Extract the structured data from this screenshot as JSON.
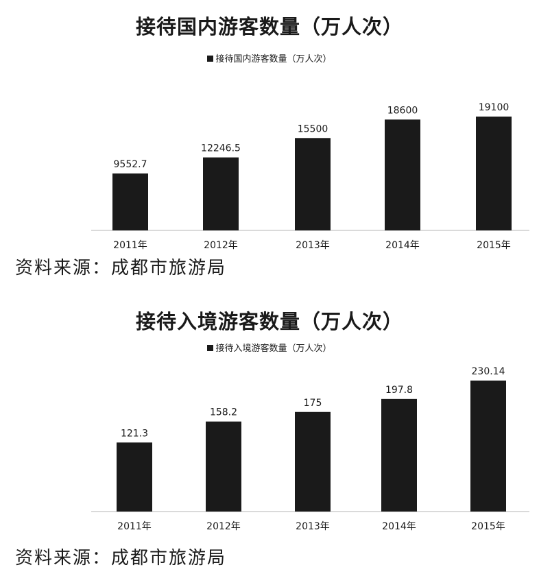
{
  "charts": [
    {
      "source_label": "资料来源：成都市旅游局"
    },
    {
      "source_label": "资料来源：成都市旅游局"
    }
  ],
  "chart_data": [
    {
      "type": "bar",
      "title": "接待国内游客数量（万人次）",
      "legend_position": "top-center",
      "grid": false,
      "categories": [
        "2011年",
        "2012年",
        "2013年",
        "2014年",
        "2015年"
      ],
      "series": [
        {
          "name": "接待国内游客数量（万人次）",
          "values": [
            9552.7,
            12246.5,
            15500,
            18600,
            19100
          ],
          "color": "#1a1a1a"
        }
      ],
      "value_labels": [
        "9552.7",
        "12246.5",
        "15500",
        "18600",
        "19100"
      ],
      "ylim": [
        0,
        19100
      ]
    },
    {
      "type": "bar",
      "title": "接待入境游客数量（万人次）",
      "legend_position": "top-center",
      "grid": false,
      "categories": [
        "2011年",
        "2012年",
        "2013年",
        "2014年",
        "2015年"
      ],
      "series": [
        {
          "name": "接待入境游客数量（万人次）",
          "values": [
            121.3,
            158.2,
            175,
            197.8,
            230.14
          ],
          "color": "#1a1a1a"
        }
      ],
      "value_labels": [
        "121.3",
        "158.2",
        "175",
        "197.8",
        "230.14"
      ],
      "ylim": [
        0,
        230.14
      ]
    }
  ]
}
